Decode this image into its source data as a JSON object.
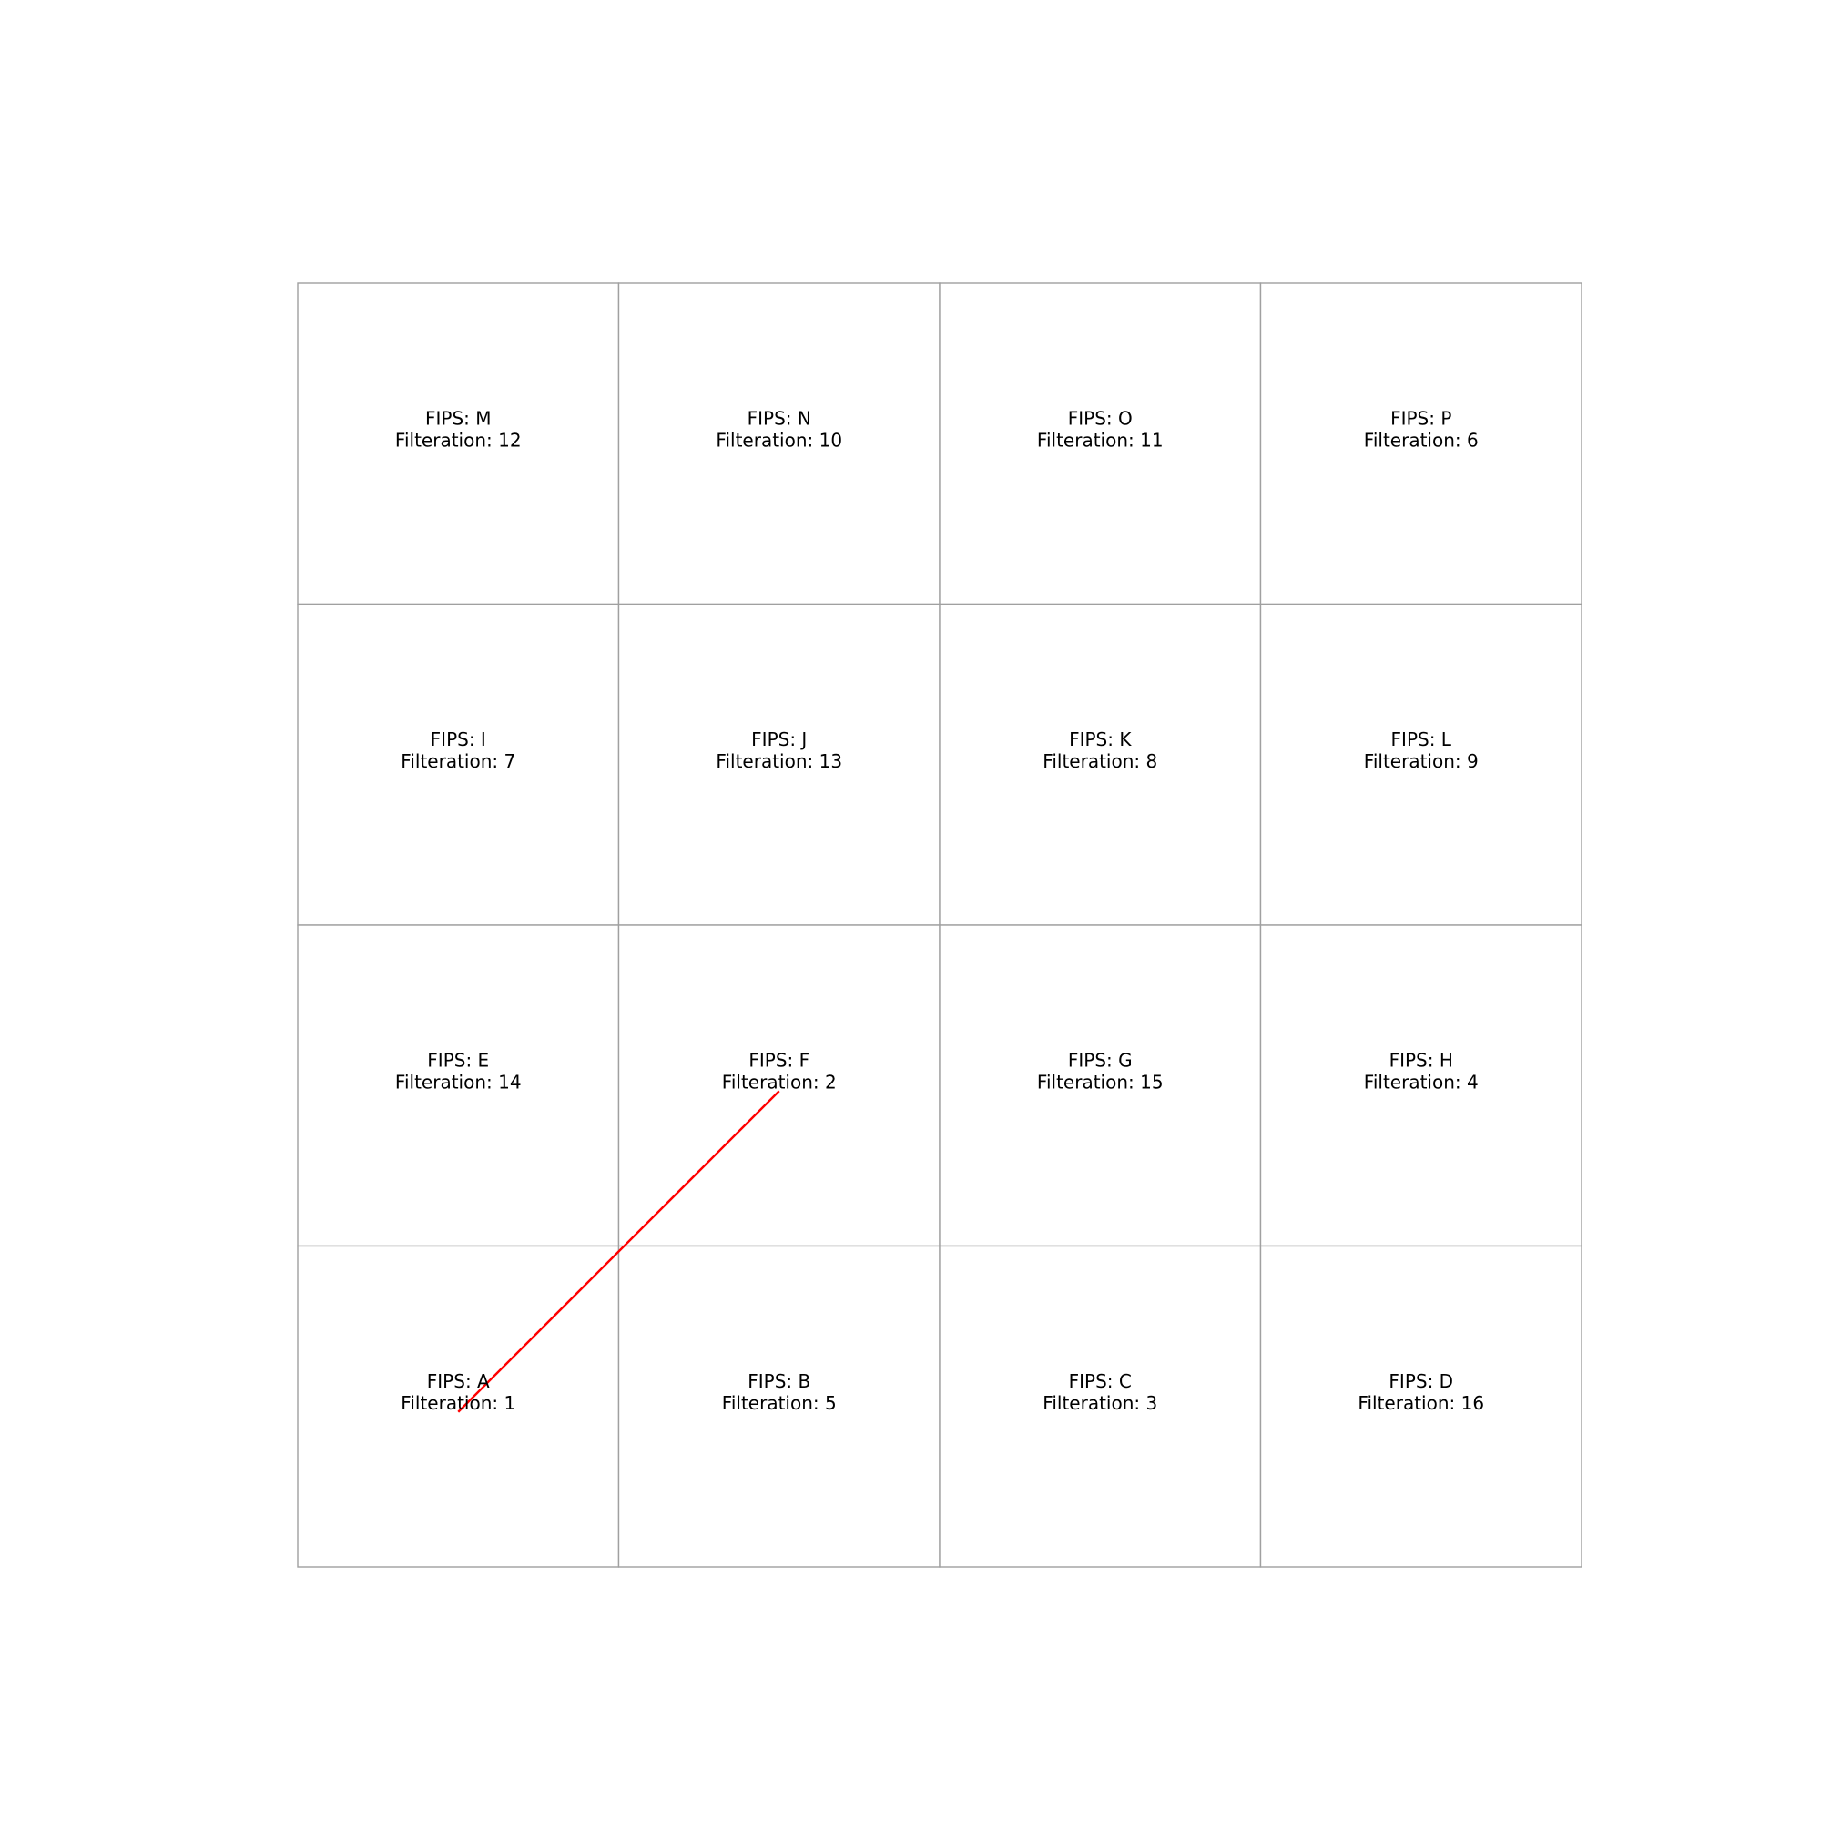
{
  "grid": {
    "rows": 4,
    "cols": 4,
    "cells": [
      {
        "fips": "M",
        "filtration": "12",
        "label_fips": "FIPS: M",
        "label_filtration": "Filteration: 12"
      },
      {
        "fips": "N",
        "filtration": "10",
        "label_fips": "FIPS: N",
        "label_filtration": "Filteration: 10"
      },
      {
        "fips": "O",
        "filtration": "11",
        "label_fips": "FIPS: O",
        "label_filtration": "Filteration: 11"
      },
      {
        "fips": "P",
        "filtration": "6",
        "label_fips": "FIPS: P",
        "label_filtration": "Filteration: 6"
      },
      {
        "fips": "I",
        "filtration": "7",
        "label_fips": "FIPS: I",
        "label_filtration": "Filteration: 7"
      },
      {
        "fips": "J",
        "filtration": "13",
        "label_fips": "FIPS: J",
        "label_filtration": "Filteration: 13"
      },
      {
        "fips": "K",
        "filtration": "8",
        "label_fips": "FIPS: K",
        "label_filtration": "Filteration: 8"
      },
      {
        "fips": "L",
        "filtration": "9",
        "label_fips": "FIPS: L",
        "label_filtration": "Filteration: 9"
      },
      {
        "fips": "E",
        "filtration": "14",
        "label_fips": "FIPS: E",
        "label_filtration": "Filteration: 14"
      },
      {
        "fips": "F",
        "filtration": "2",
        "label_fips": "FIPS: F",
        "label_filtration": "Filteration: 2"
      },
      {
        "fips": "G",
        "filtration": "15",
        "label_fips": "FIPS: G",
        "label_filtration": "Filteration: 15"
      },
      {
        "fips": "H",
        "filtration": "4",
        "label_fips": "FIPS: H",
        "label_filtration": "Filteration: 4"
      },
      {
        "fips": "A",
        "filtration": "1",
        "label_fips": "FIPS: A",
        "label_filtration": "Filteration: 1"
      },
      {
        "fips": "B",
        "filtration": "5",
        "label_fips": "FIPS: B",
        "label_filtration": "Filteration: 5"
      },
      {
        "fips": "C",
        "filtration": "3",
        "label_fips": "FIPS: C",
        "label_filtration": "Filteration: 3"
      },
      {
        "fips": "D",
        "filtration": "16",
        "label_fips": "FIPS: D",
        "label_filtration": "Filteration: 16"
      }
    ]
  },
  "edges": [
    {
      "from": "A",
      "to": "F",
      "color": "#ff0000"
    }
  ],
  "colors": {
    "cell_border": "#a0a0a0",
    "edge": "#ff0000",
    "text": "#000000"
  }
}
